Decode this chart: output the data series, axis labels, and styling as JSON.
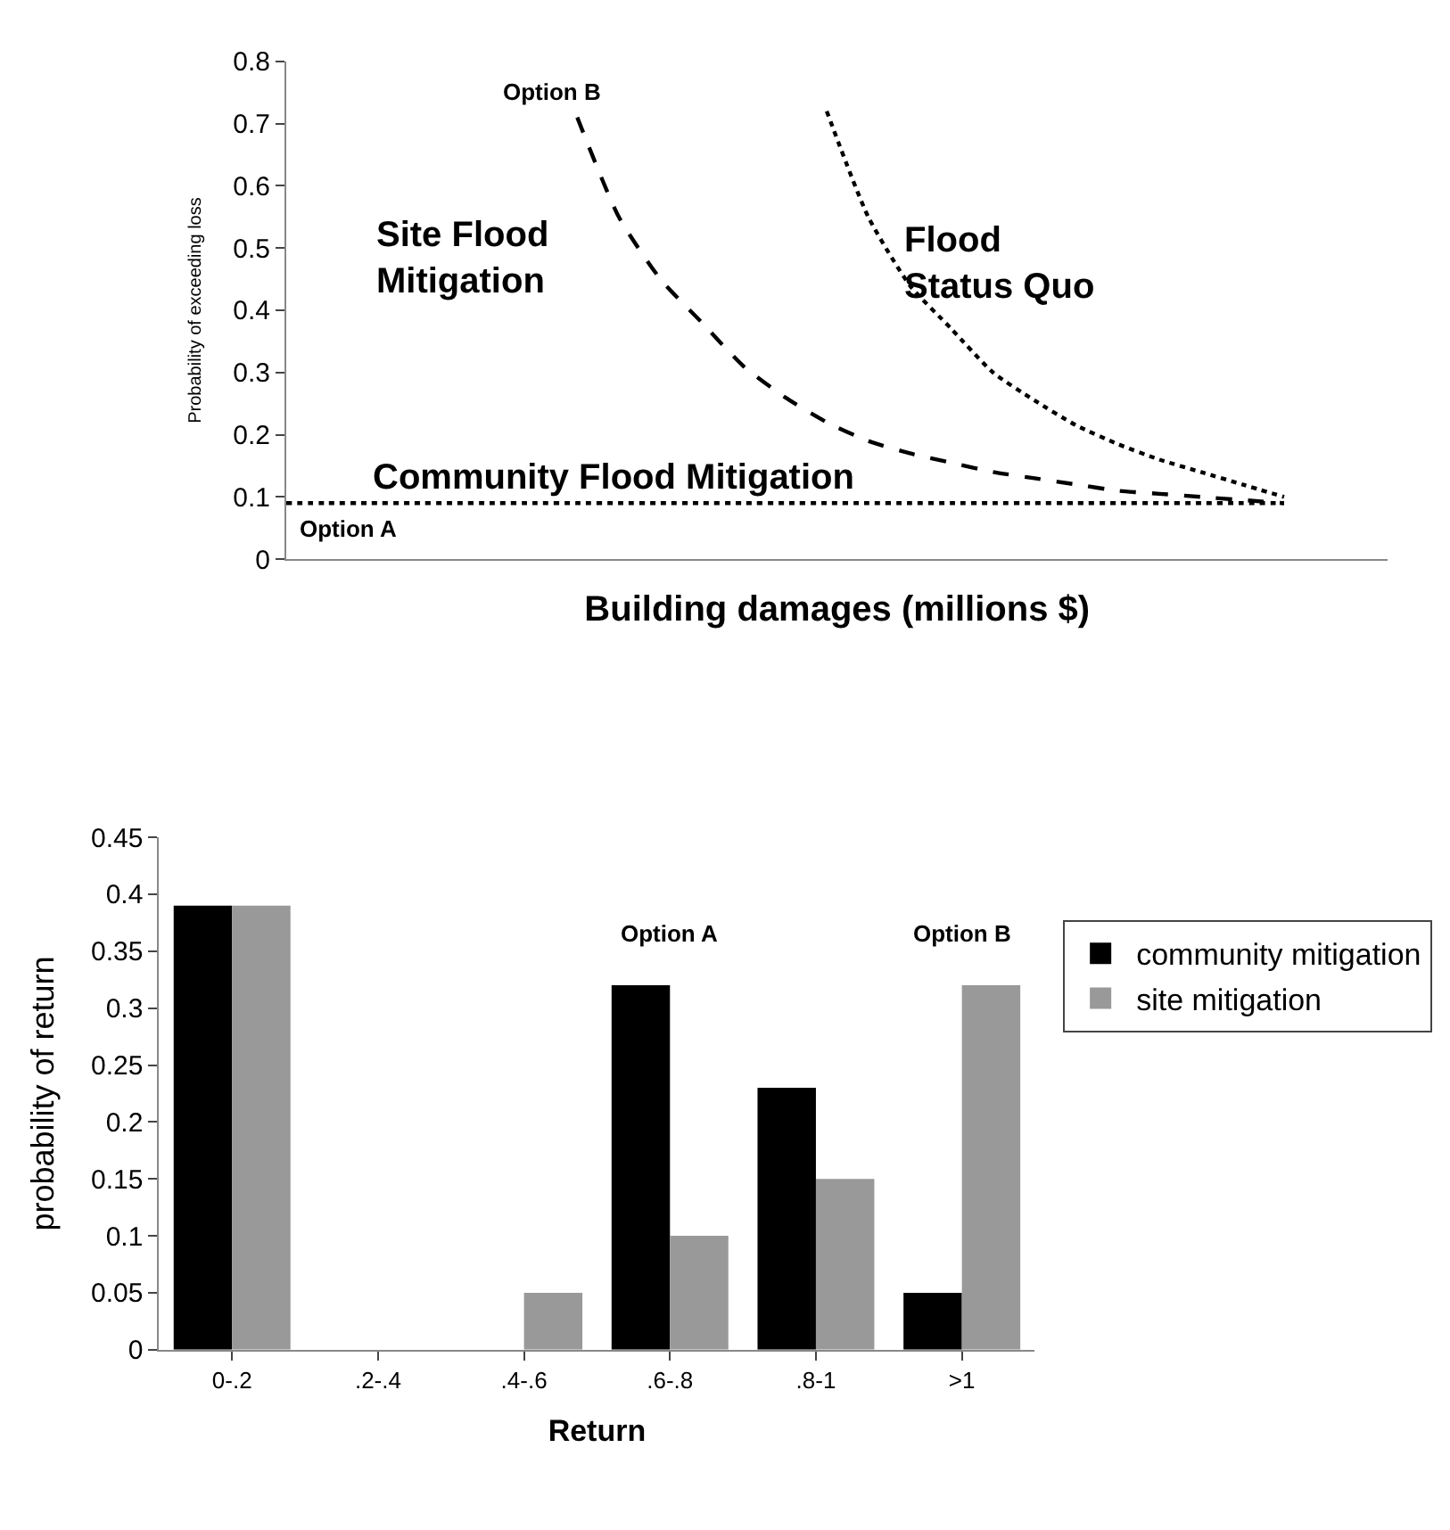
{
  "chart_data": [
    {
      "type": "line",
      "xlabel": "Building damages (millions $)",
      "ylabel": "Probability of exceeding loss",
      "categories": [
        null,
        null,
        null,
        null,
        null,
        null,
        null,
        null,
        null,
        null,
        null,
        null,
        null,
        null,
        null,
        null,
        null,
        null,
        null,
        null,
        null,
        null,
        null,
        null,
        null,
        null,
        null
      ],
      "series": [
        {
          "name": "Site Flood Mitigation",
          "color": "#000000",
          "line_style": "dashed",
          "values": [
            null,
            null,
            null,
            null,
            null,
            null,
            null,
            0.71,
            0.55,
            0.45,
            0.38,
            0.31,
            0.26,
            0.22,
            0.19,
            0.17,
            0.155,
            0.14,
            0.13,
            0.12,
            0.11,
            0.105,
            0.1,
            0.095,
            0.09,
            null,
            null
          ]
        },
        {
          "name": "Flood Status Quo",
          "color": "#000000",
          "line_style": "dotted",
          "values": [
            null,
            null,
            null,
            null,
            null,
            null,
            null,
            null,
            null,
            null,
            null,
            null,
            null,
            0.72,
            0.55,
            0.44,
            0.37,
            0.3,
            0.255,
            0.215,
            0.185,
            0.16,
            0.14,
            0.12,
            0.1,
            null,
            null
          ]
        },
        {
          "name": "Community Flood Mitigation",
          "color": "#000000",
          "line_style": "dotted",
          "values": [
            0.09,
            0.09,
            0.09,
            0.09,
            0.09,
            0.09,
            0.09,
            0.09,
            0.09,
            0.09,
            0.09,
            0.09,
            0.09,
            0.09,
            0.09,
            0.09,
            0.09,
            0.09,
            0.09,
            0.09,
            0.09,
            0.09,
            0.09,
            0.09,
            0.09,
            null,
            null
          ]
        }
      ],
      "annotations": [
        "Option B",
        "Option A"
      ],
      "ylim": [
        0,
        0.8
      ],
      "yticks": [
        0,
        0.1,
        0.2,
        0.3,
        0.4,
        0.5,
        0.6,
        0.7,
        0.8
      ],
      "tick_labels": "y",
      "legend": false
    },
    {
      "type": "bar",
      "xlabel": "Return",
      "ylabel": "probability of return",
      "categories": [
        "0-.2",
        ".2-.4",
        ".4-.6",
        ".6-.8",
        ".8-1",
        ">1"
      ],
      "series": [
        {
          "name": "community mitigation",
          "color": "#000000",
          "values": [
            0.39,
            0,
            0,
            0.32,
            0.23,
            0.05
          ]
        },
        {
          "name": "site mitigation",
          "color": "#999999",
          "values": [
            0.39,
            0,
            0.05,
            0.1,
            0.15,
            0.32
          ]
        }
      ],
      "annotations": [
        "Option A",
        "Option B"
      ],
      "ylim": [
        0,
        0.45
      ],
      "yticks": [
        0,
        0.05,
        0.1,
        0.15,
        0.2,
        0.25,
        0.3,
        0.35,
        0.4,
        0.45
      ],
      "legend": "right"
    }
  ]
}
